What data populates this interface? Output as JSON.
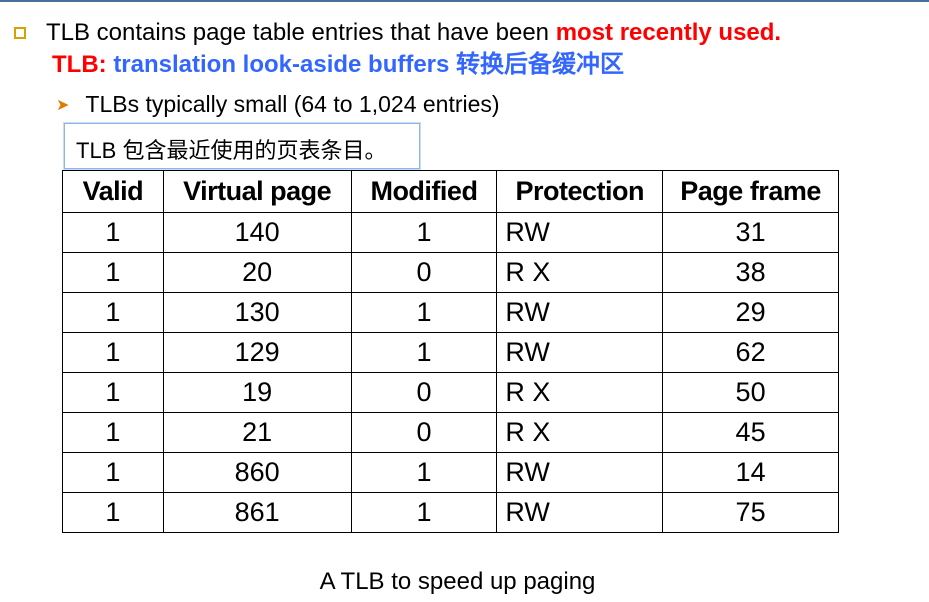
{
  "bullet1": {
    "text_prefix": "TLB contains page table entries that have been ",
    "highlight": "most recently used.",
    "highlight_color": "#ff0000"
  },
  "line2": {
    "red_prefix": "TLB: ",
    "blue_text": "translation look-aside buffers 转换后备缓冲区",
    "blue_color": "#3366ff"
  },
  "sub_bullet": {
    "text": "TLBs typically small (64 to 1,024 entries)"
  },
  "tooltip": {
    "text": "TLB 包含最近使用的页表条目。"
  },
  "table": {
    "headers": {
      "valid": "Valid",
      "virtual_page": "Virtual page",
      "modified": "Modified",
      "protection": "Protection",
      "page_frame": "Page frame"
    },
    "rows": [
      {
        "valid": "1",
        "virtual_page": "140",
        "modified": "1",
        "protection": "RW",
        "page_frame": "31"
      },
      {
        "valid": "1",
        "virtual_page": "20",
        "modified": "0",
        "protection": "R X",
        "page_frame": "38"
      },
      {
        "valid": "1",
        "virtual_page": "130",
        "modified": "1",
        "protection": "RW",
        "page_frame": "29"
      },
      {
        "valid": "1",
        "virtual_page": "129",
        "modified": "1",
        "protection": "RW",
        "page_frame": "62"
      },
      {
        "valid": "1",
        "virtual_page": "19",
        "modified": "0",
        "protection": "R X",
        "page_frame": "50"
      },
      {
        "valid": "1",
        "virtual_page": "21",
        "modified": "0",
        "protection": "R X",
        "page_frame": "45"
      },
      {
        "valid": "1",
        "virtual_page": "860",
        "modified": "1",
        "protection": "RW",
        "page_frame": "14"
      },
      {
        "valid": "1",
        "virtual_page": "861",
        "modified": "1",
        "protection": "RW",
        "page_frame": "75"
      }
    ]
  },
  "caption": {
    "text": "A TLB to speed up paging"
  },
  "icons": {
    "bullet1": "square-bullet-icon",
    "sub_bullet": "arrow-bullet-icon"
  }
}
